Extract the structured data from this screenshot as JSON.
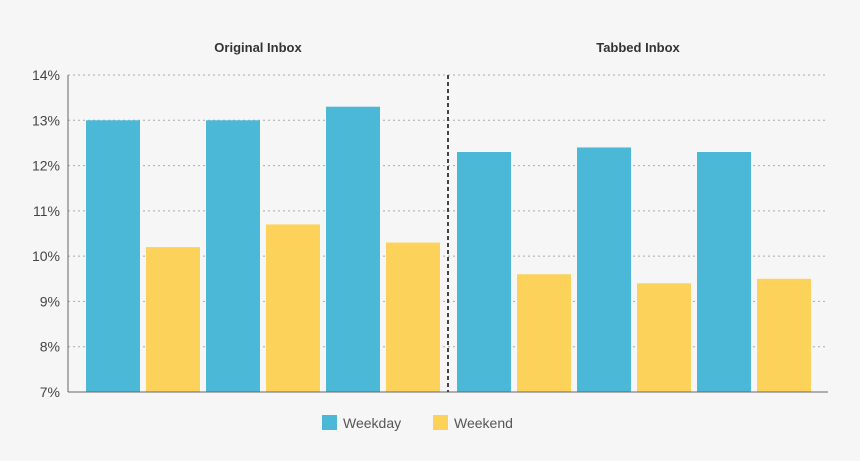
{
  "chart_data": {
    "type": "bar",
    "panels": [
      {
        "title": "Original Inbox",
        "series": [
          {
            "name": "Weekday",
            "values": [
              13.0,
              13.0,
              13.3
            ]
          },
          {
            "name": "Weekend",
            "values": [
              10.2,
              10.7,
              10.3
            ]
          }
        ]
      },
      {
        "title": "Tabbed Inbox",
        "series": [
          {
            "name": "Weekday",
            "values": [
              12.3,
              12.4,
              12.3
            ]
          },
          {
            "name": "Weekend",
            "values": [
              9.6,
              9.4,
              9.5
            ]
          }
        ]
      }
    ],
    "y_ticks": [
      "14%",
      "13%",
      "12%",
      "11%",
      "10%",
      "9%",
      "8%",
      "7%"
    ],
    "ylim": [
      7,
      14
    ],
    "grid": true,
    "legend_position": "bottom-center",
    "legend": [
      {
        "name": "Weekday",
        "color": "#4cb8d8"
      },
      {
        "name": "Weekend",
        "color": "#fdd25a"
      }
    ]
  }
}
